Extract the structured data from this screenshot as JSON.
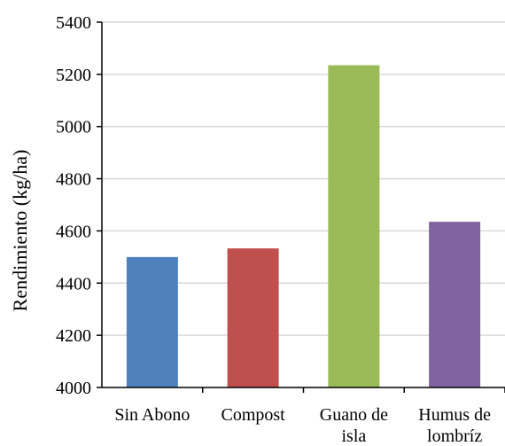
{
  "chart_data": {
    "type": "bar",
    "categories": [
      [
        "Sin Abono"
      ],
      [
        "Compost"
      ],
      [
        "Guano de",
        "isla"
      ],
      [
        "Humus de",
        "lombríz"
      ]
    ],
    "values": [
      4500,
      4533,
      5235,
      4635
    ],
    "colors": [
      "#4F81BD",
      "#C0504D",
      "#9BBB59",
      "#8064A2"
    ],
    "title": "",
    "xlabel": "",
    "ylabel": "Rendimiento (kg/ha)",
    "ylim": [
      4000,
      5400
    ],
    "yticks": [
      4000,
      4200,
      4400,
      4600,
      4800,
      5000,
      5200,
      5400
    ],
    "grid": true,
    "legend": "none"
  }
}
